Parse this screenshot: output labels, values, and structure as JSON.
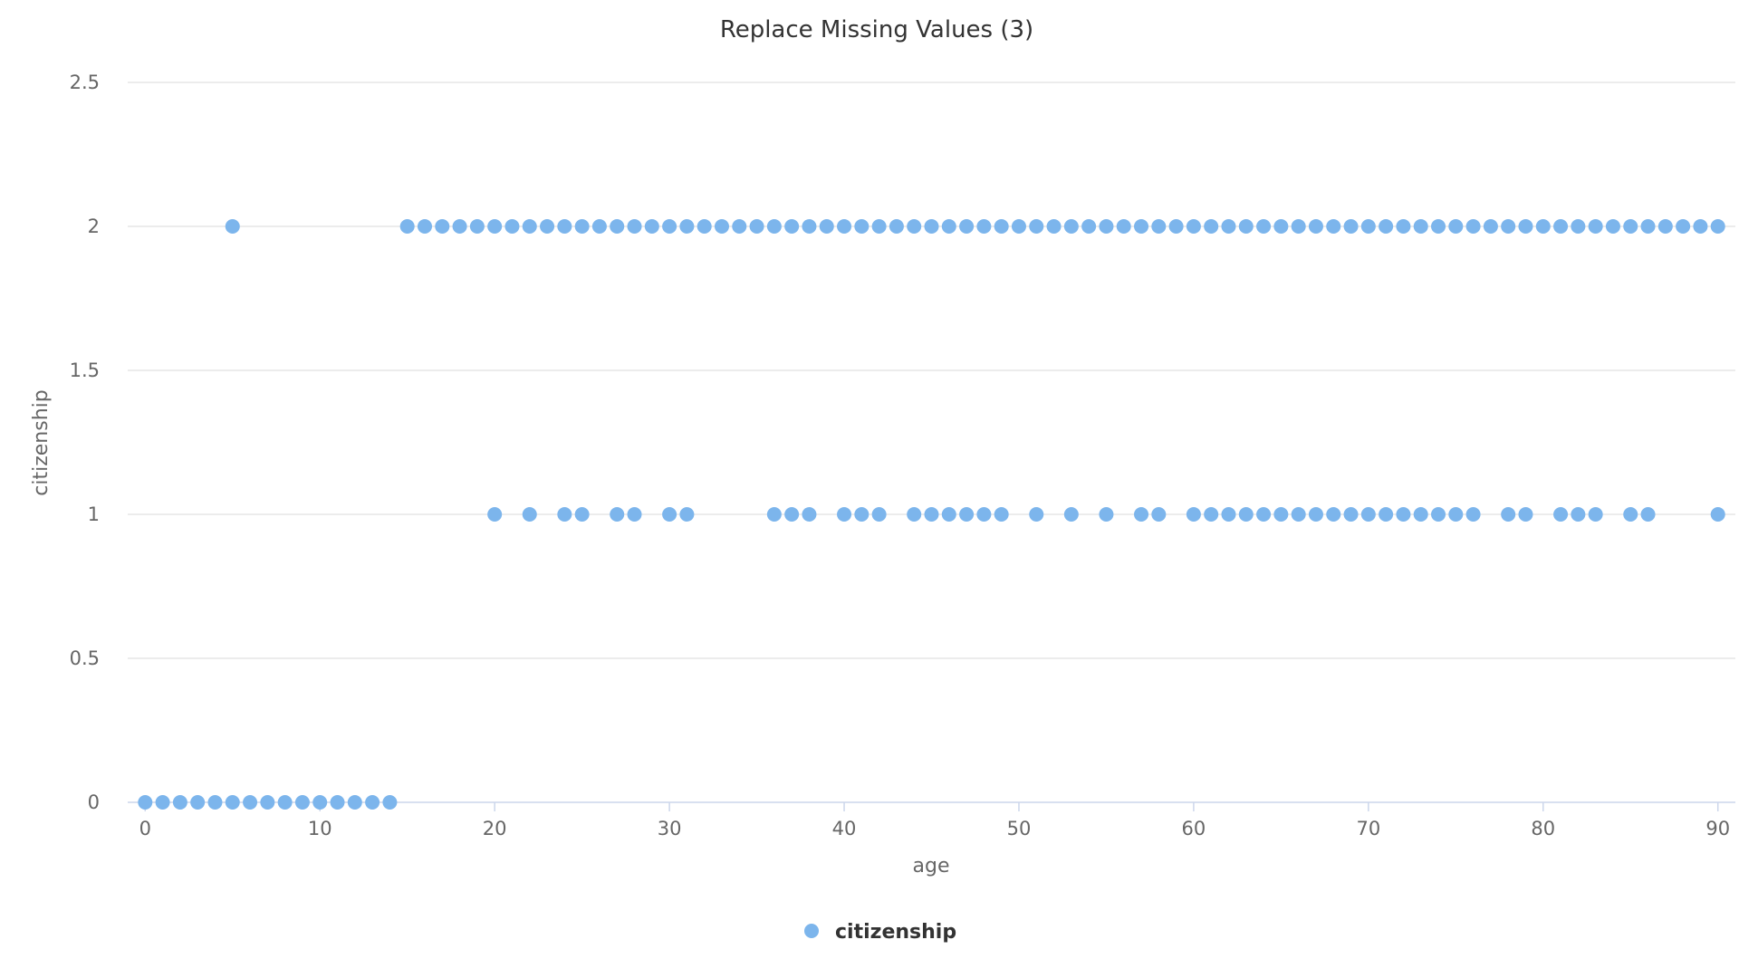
{
  "chart_data": {
    "type": "scatter",
    "title": "Replace Missing Values (3)",
    "xlabel": "age",
    "ylabel": "citizenship",
    "xlim": [
      -1,
      91
    ],
    "ylim": [
      0,
      2.5
    ],
    "x_ticks": [
      "0",
      "10",
      "20",
      "30",
      "40",
      "50",
      "60",
      "70",
      "80",
      "90"
    ],
    "y_ticks": [
      "0",
      "0.5",
      "1",
      "1.5",
      "2",
      "2.5"
    ],
    "grid": true,
    "legend": "bottom-center",
    "series": [
      {
        "name": "citizenship",
        "color": "#7cb5ec",
        "points": [
          [
            0,
            0
          ],
          [
            1,
            0
          ],
          [
            2,
            0
          ],
          [
            3,
            0
          ],
          [
            4,
            0
          ],
          [
            5,
            0
          ],
          [
            6,
            0
          ],
          [
            7,
            0
          ],
          [
            8,
            0
          ],
          [
            9,
            0
          ],
          [
            10,
            0
          ],
          [
            11,
            0
          ],
          [
            12,
            0
          ],
          [
            13,
            0
          ],
          [
            14,
            0
          ],
          [
            5,
            2
          ],
          [
            15,
            2
          ],
          [
            16,
            2
          ],
          [
            17,
            2
          ],
          [
            18,
            2
          ],
          [
            19,
            2
          ],
          [
            20,
            2
          ],
          [
            21,
            2
          ],
          [
            22,
            2
          ],
          [
            23,
            2
          ],
          [
            24,
            2
          ],
          [
            25,
            2
          ],
          [
            26,
            2
          ],
          [
            27,
            2
          ],
          [
            28,
            2
          ],
          [
            29,
            2
          ],
          [
            30,
            2
          ],
          [
            31,
            2
          ],
          [
            32,
            2
          ],
          [
            33,
            2
          ],
          [
            34,
            2
          ],
          [
            35,
            2
          ],
          [
            36,
            2
          ],
          [
            37,
            2
          ],
          [
            38,
            2
          ],
          [
            39,
            2
          ],
          [
            40,
            2
          ],
          [
            41,
            2
          ],
          [
            42,
            2
          ],
          [
            43,
            2
          ],
          [
            44,
            2
          ],
          [
            45,
            2
          ],
          [
            46,
            2
          ],
          [
            47,
            2
          ],
          [
            48,
            2
          ],
          [
            49,
            2
          ],
          [
            50,
            2
          ],
          [
            51,
            2
          ],
          [
            52,
            2
          ],
          [
            53,
            2
          ],
          [
            54,
            2
          ],
          [
            55,
            2
          ],
          [
            56,
            2
          ],
          [
            57,
            2
          ],
          [
            58,
            2
          ],
          [
            59,
            2
          ],
          [
            60,
            2
          ],
          [
            61,
            2
          ],
          [
            62,
            2
          ],
          [
            63,
            2
          ],
          [
            64,
            2
          ],
          [
            65,
            2
          ],
          [
            66,
            2
          ],
          [
            67,
            2
          ],
          [
            68,
            2
          ],
          [
            69,
            2
          ],
          [
            70,
            2
          ],
          [
            71,
            2
          ],
          [
            72,
            2
          ],
          [
            73,
            2
          ],
          [
            74,
            2
          ],
          [
            75,
            2
          ],
          [
            76,
            2
          ],
          [
            77,
            2
          ],
          [
            78,
            2
          ],
          [
            79,
            2
          ],
          [
            80,
            2
          ],
          [
            81,
            2
          ],
          [
            82,
            2
          ],
          [
            83,
            2
          ],
          [
            84,
            2
          ],
          [
            85,
            2
          ],
          [
            86,
            2
          ],
          [
            87,
            2
          ],
          [
            88,
            2
          ],
          [
            89,
            2
          ],
          [
            90,
            2
          ],
          [
            20,
            1
          ],
          [
            22,
            1
          ],
          [
            24,
            1
          ],
          [
            25,
            1
          ],
          [
            27,
            1
          ],
          [
            28,
            1
          ],
          [
            30,
            1
          ],
          [
            31,
            1
          ],
          [
            36,
            1
          ],
          [
            37,
            1
          ],
          [
            38,
            1
          ],
          [
            40,
            1
          ],
          [
            41,
            1
          ],
          [
            42,
            1
          ],
          [
            44,
            1
          ],
          [
            45,
            1
          ],
          [
            46,
            1
          ],
          [
            47,
            1
          ],
          [
            48,
            1
          ],
          [
            49,
            1
          ],
          [
            51,
            1
          ],
          [
            53,
            1
          ],
          [
            55,
            1
          ],
          [
            57,
            1
          ],
          [
            58,
            1
          ],
          [
            60,
            1
          ],
          [
            61,
            1
          ],
          [
            62,
            1
          ],
          [
            63,
            1
          ],
          [
            64,
            1
          ],
          [
            65,
            1
          ],
          [
            66,
            1
          ],
          [
            67,
            1
          ],
          [
            68,
            1
          ],
          [
            69,
            1
          ],
          [
            70,
            1
          ],
          [
            71,
            1
          ],
          [
            72,
            1
          ],
          [
            73,
            1
          ],
          [
            74,
            1
          ],
          [
            75,
            1
          ],
          [
            76,
            1
          ],
          [
            78,
            1
          ],
          [
            79,
            1
          ],
          [
            81,
            1
          ],
          [
            82,
            1
          ],
          [
            83,
            1
          ],
          [
            85,
            1
          ],
          [
            86,
            1
          ],
          [
            90,
            1
          ]
        ]
      }
    ]
  }
}
